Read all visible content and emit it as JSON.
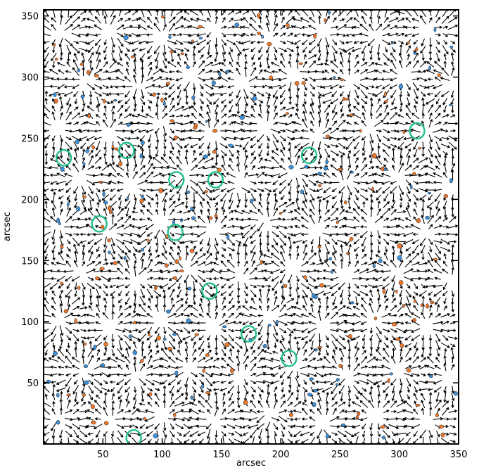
{
  "chart_data": {
    "type": "scatter",
    "title": "",
    "xlabel": "arcsec",
    "ylabel": "arcsec",
    "xlim": [
      0,
      350
    ],
    "ylim": [
      0,
      355
    ],
    "xticks": [
      50,
      100,
      150,
      200,
      250,
      300,
      350
    ],
    "yticks": [
      50,
      100,
      150,
      200,
      250,
      300,
      350
    ],
    "grid": false,
    "legend": "none",
    "colors": {
      "arrows": "#000000",
      "circles": "#1fbf8f",
      "negative_dots": "#e8772e",
      "positive_dots": "#3d8fd6",
      "background": "#ffffff"
    },
    "series": [
      {
        "kind": "circles",
        "points": [
          {
            "x": 17,
            "y": 234
          },
          {
            "x": 70,
            "y": 240
          },
          {
            "x": 47,
            "y": 180
          },
          {
            "x": 112,
            "y": 216
          },
          {
            "x": 145,
            "y": 216
          },
          {
            "x": 224,
            "y": 236
          },
          {
            "x": 111,
            "y": 173
          },
          {
            "x": 140,
            "y": 125
          },
          {
            "x": 173,
            "y": 90
          },
          {
            "x": 207,
            "y": 70
          },
          {
            "x": 315,
            "y": 256
          },
          {
            "x": 76,
            "y": 5
          }
        ]
      }
    ],
    "cells": [
      {
        "x": 15,
        "y": 335
      },
      {
        "x": 55,
        "y": 338
      },
      {
        "x": 100,
        "y": 332
      },
      {
        "x": 145,
        "y": 340
      },
      {
        "x": 190,
        "y": 330
      },
      {
        "x": 235,
        "y": 337
      },
      {
        "x": 280,
        "y": 334
      },
      {
        "x": 325,
        "y": 338
      },
      {
        "x": 35,
        "y": 298
      },
      {
        "x": 80,
        "y": 292
      },
      {
        "x": 125,
        "y": 300
      },
      {
        "x": 168,
        "y": 295
      },
      {
        "x": 212,
        "y": 302
      },
      {
        "x": 258,
        "y": 296
      },
      {
        "x": 303,
        "y": 300
      },
      {
        "x": 345,
        "y": 294
      },
      {
        "x": 12,
        "y": 258
      },
      {
        "x": 55,
        "y": 255
      },
      {
        "x": 98,
        "y": 262
      },
      {
        "x": 142,
        "y": 254
      },
      {
        "x": 188,
        "y": 260
      },
      {
        "x": 232,
        "y": 252
      },
      {
        "x": 276,
        "y": 258
      },
      {
        "x": 322,
        "y": 256
      },
      {
        "x": 30,
        "y": 218
      },
      {
        "x": 75,
        "y": 212
      },
      {
        "x": 120,
        "y": 220
      },
      {
        "x": 165,
        "y": 214
      },
      {
        "x": 210,
        "y": 222
      },
      {
        "x": 255,
        "y": 214
      },
      {
        "x": 300,
        "y": 218
      },
      {
        "x": 343,
        "y": 212
      },
      {
        "x": 12,
        "y": 178
      },
      {
        "x": 55,
        "y": 172
      },
      {
        "x": 98,
        "y": 180
      },
      {
        "x": 142,
        "y": 174
      },
      {
        "x": 188,
        "y": 182
      },
      {
        "x": 232,
        "y": 175
      },
      {
        "x": 278,
        "y": 178
      },
      {
        "x": 322,
        "y": 172
      },
      {
        "x": 32,
        "y": 140
      },
      {
        "x": 78,
        "y": 134
      },
      {
        "x": 122,
        "y": 142
      },
      {
        "x": 166,
        "y": 136
      },
      {
        "x": 210,
        "y": 143
      },
      {
        "x": 255,
        "y": 136
      },
      {
        "x": 300,
        "y": 140
      },
      {
        "x": 344,
        "y": 134
      },
      {
        "x": 14,
        "y": 100
      },
      {
        "x": 56,
        "y": 96
      },
      {
        "x": 100,
        "y": 102
      },
      {
        "x": 144,
        "y": 96
      },
      {
        "x": 190,
        "y": 104
      },
      {
        "x": 234,
        "y": 96
      },
      {
        "x": 280,
        "y": 100
      },
      {
        "x": 324,
        "y": 95
      },
      {
        "x": 34,
        "y": 60
      },
      {
        "x": 78,
        "y": 56
      },
      {
        "x": 122,
        "y": 62
      },
      {
        "x": 167,
        "y": 56
      },
      {
        "x": 212,
        "y": 63
      },
      {
        "x": 256,
        "y": 56
      },
      {
        "x": 300,
        "y": 60
      },
      {
        "x": 343,
        "y": 54
      },
      {
        "x": 14,
        "y": 20
      },
      {
        "x": 57,
        "y": 18
      },
      {
        "x": 100,
        "y": 24
      },
      {
        "x": 145,
        "y": 18
      },
      {
        "x": 190,
        "y": 24
      },
      {
        "x": 235,
        "y": 17
      },
      {
        "x": 280,
        "y": 22
      },
      {
        "x": 325,
        "y": 17
      }
    ]
  }
}
